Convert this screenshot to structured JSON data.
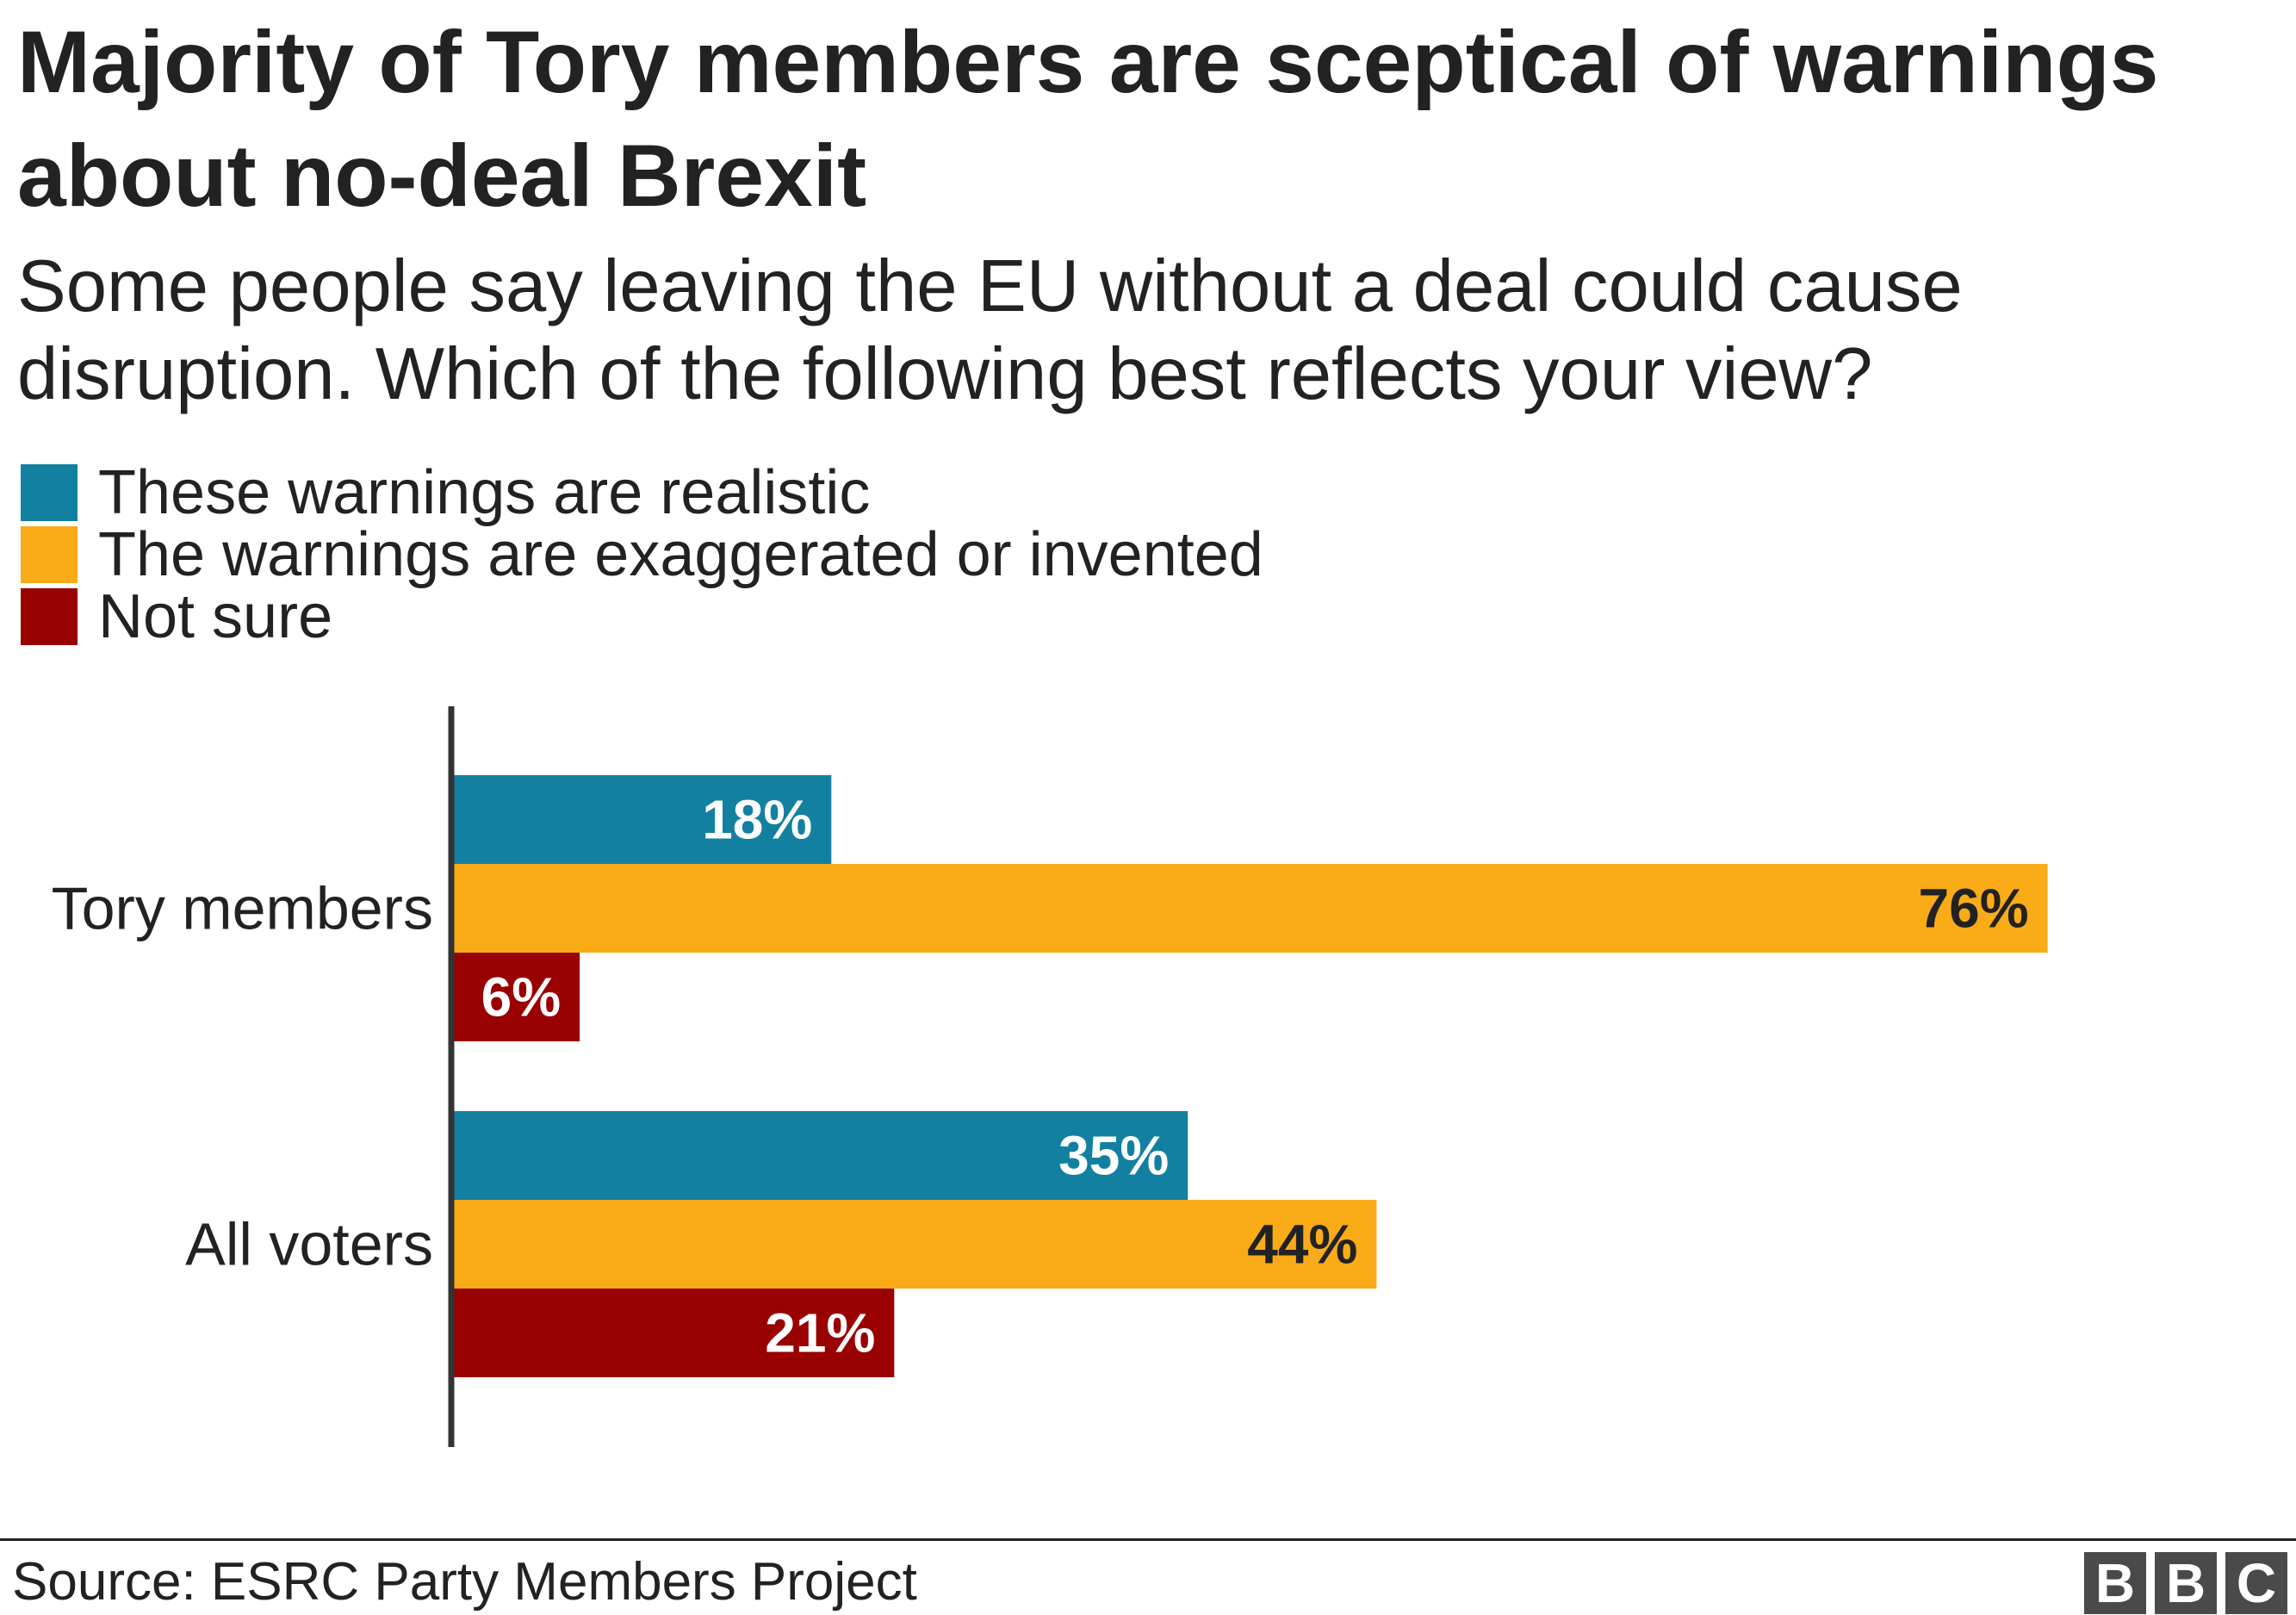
{
  "title": "Majority of Tory members are sceptical of warnings about no-deal Brexit",
  "subtitle": "Some people say leaving the EU without a deal could cause disruption. Which of the following best reflects your view?",
  "legend": [
    {
      "label": "These warnings are realistic",
      "color": "#1380A1"
    },
    {
      "label": "The warnings are exaggerated or invented",
      "color": "#FAAB18"
    },
    {
      "label": "Not sure",
      "color": "#990000"
    }
  ],
  "chart_data": {
    "type": "bar",
    "orientation": "horizontal",
    "categories": [
      "Tory members",
      "All voters"
    ],
    "series": [
      {
        "name": "These warnings are realistic",
        "values": [
          18,
          35
        ],
        "color": "#1380A1",
        "label_color": "#ffffff"
      },
      {
        "name": "The warnings are exaggerated or invented",
        "values": [
          76,
          44
        ],
        "color": "#FAAB18",
        "label_color": "#222222"
      },
      {
        "name": "Not sure",
        "values": [
          6,
          21
        ],
        "color": "#990000",
        "label_color": "#ffffff"
      }
    ],
    "value_suffix": "%",
    "xlim": [
      0,
      100
    ],
    "grid": false,
    "legend_position": "top-left"
  },
  "footer": {
    "source": "Source: ESRC Party Members Project",
    "logo_letters": [
      "B",
      "B",
      "C"
    ]
  }
}
